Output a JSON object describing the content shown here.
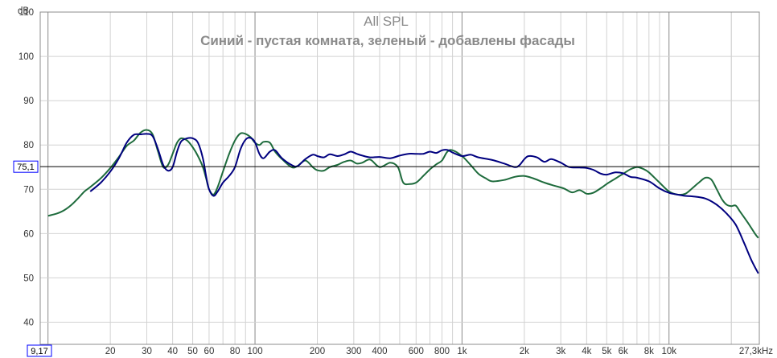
{
  "chart_data": {
    "type": "line",
    "title": "All SPL",
    "subtitle": "Синий - пустая комната, зеленый - добавлены фасады",
    "ylabel": "dB",
    "xlabel_unit": "Hz",
    "x_scale": "log",
    "xlim": [
      9.17,
      27300
    ],
    "ylim": [
      35,
      110
    ],
    "grid": true,
    "y_ticks": [
      40,
      50,
      60,
      70,
      80,
      90,
      100,
      110
    ],
    "y_tick_labels": [
      "40",
      "50",
      "60",
      "70",
      "80",
      "90",
      "100",
      "110"
    ],
    "x_tick_values": [
      20,
      30,
      40,
      50,
      60,
      80,
      100,
      200,
      300,
      400,
      600,
      800,
      1000,
      2000,
      3000,
      4000,
      5000,
      6000,
      8000,
      10000
    ],
    "x_tick_labels": [
      "20",
      "30",
      "40",
      "50",
      "60",
      "80",
      "100",
      "200",
      "300",
      "400",
      "600",
      "800",
      "1k",
      "2k",
      "3k",
      "4k",
      "5k",
      "6k",
      "8k",
      "10k"
    ],
    "x_min_label": "9,17",
    "x_max_label": "27,3kHz",
    "reference_line": {
      "value": 75.1,
      "label": "75,1"
    },
    "series": [
      {
        "name": "Синий - пустая комната",
        "color": "#00007f",
        "points": [
          [
            16,
            69.5
          ],
          [
            18,
            71.5
          ],
          [
            20,
            74
          ],
          [
            22,
            77
          ],
          [
            24,
            80.5
          ],
          [
            26,
            82.3
          ],
          [
            28,
            82.4
          ],
          [
            30,
            82.5
          ],
          [
            32,
            82
          ],
          [
            34,
            79
          ],
          [
            36,
            75.5
          ],
          [
            38,
            74.2
          ],
          [
            40,
            75
          ],
          [
            42,
            78.5
          ],
          [
            44,
            80.8
          ],
          [
            47,
            81.5
          ],
          [
            50,
            81.5
          ],
          [
            53,
            80.5
          ],
          [
            56,
            77
          ],
          [
            58,
            73
          ],
          [
            60,
            70
          ],
          [
            63,
            68.5
          ],
          [
            66,
            69.5
          ],
          [
            70,
            71.5
          ],
          [
            75,
            73
          ],
          [
            80,
            75
          ],
          [
            85,
            79
          ],
          [
            90,
            81.2
          ],
          [
            95,
            81.6
          ],
          [
            100,
            80.6
          ],
          [
            105,
            78
          ],
          [
            110,
            77
          ],
          [
            118,
            78.5
          ],
          [
            125,
            78.8
          ],
          [
            135,
            77
          ],
          [
            150,
            75.5
          ],
          [
            160,
            75.2
          ],
          [
            175,
            76.8
          ],
          [
            190,
            77.8
          ],
          [
            200,
            77.5
          ],
          [
            215,
            77.2
          ],
          [
            230,
            77.9
          ],
          [
            250,
            77.5
          ],
          [
            270,
            77.9
          ],
          [
            290,
            78.5
          ],
          [
            310,
            78
          ],
          [
            330,
            77.6
          ],
          [
            360,
            77.2
          ],
          [
            400,
            77.3
          ],
          [
            450,
            77
          ],
          [
            500,
            77.6
          ],
          [
            550,
            78
          ],
          [
            600,
            78
          ],
          [
            650,
            78
          ],
          [
            700,
            78.5
          ],
          [
            750,
            78.2
          ],
          [
            800,
            78.8
          ],
          [
            850,
            78.9
          ],
          [
            900,
            78.3
          ],
          [
            1000,
            77.5
          ],
          [
            1100,
            77.8
          ],
          [
            1200,
            77.2
          ],
          [
            1400,
            76.6
          ],
          [
            1600,
            75.8
          ],
          [
            1800,
            75
          ],
          [
            1900,
            75.5
          ],
          [
            2000,
            76.8
          ],
          [
            2100,
            77.5
          ],
          [
            2300,
            77.2
          ],
          [
            2500,
            76.2
          ],
          [
            2700,
            76.8
          ],
          [
            3000,
            76
          ],
          [
            3300,
            75
          ],
          [
            3700,
            74.9
          ],
          [
            4000,
            74.8
          ],
          [
            4300,
            74.4
          ],
          [
            4700,
            73.5
          ],
          [
            5000,
            73.3
          ],
          [
            5500,
            73.8
          ],
          [
            6000,
            73.6
          ],
          [
            6500,
            72.8
          ],
          [
            7000,
            72.6
          ],
          [
            8000,
            71.8
          ],
          [
            9000,
            70.2
          ],
          [
            10000,
            69.2
          ],
          [
            11000,
            68.8
          ],
          [
            12000,
            68.5
          ],
          [
            13000,
            68.4
          ],
          [
            15000,
            67.9
          ],
          [
            17000,
            66.5
          ],
          [
            19000,
            64.5
          ],
          [
            21000,
            62
          ],
          [
            23000,
            58
          ],
          [
            25000,
            54
          ],
          [
            27000,
            51
          ]
        ]
      },
      {
        "name": "зеленый - добавлены фасады",
        "color": "#1e6b3c",
        "points": [
          [
            10,
            64
          ],
          [
            11,
            64.5
          ],
          [
            12,
            65.3
          ],
          [
            13,
            66.5
          ],
          [
            14,
            68
          ],
          [
            15,
            69.5
          ],
          [
            16,
            70.5
          ],
          [
            18,
            72.5
          ],
          [
            20,
            74.8
          ],
          [
            22,
            77.3
          ],
          [
            24,
            79.8
          ],
          [
            26,
            81
          ],
          [
            28,
            82.8
          ],
          [
            30,
            83.4
          ],
          [
            32,
            82.4
          ],
          [
            34,
            78.5
          ],
          [
            36,
            75
          ],
          [
            38,
            75.5
          ],
          [
            40,
            78
          ],
          [
            42,
            80.5
          ],
          [
            44,
            81.5
          ],
          [
            47,
            81
          ],
          [
            50,
            79.5
          ],
          [
            53,
            77.5
          ],
          [
            56,
            75
          ],
          [
            58,
            72.5
          ],
          [
            60,
            70
          ],
          [
            63,
            68.8
          ],
          [
            66,
            70.5
          ],
          [
            70,
            74
          ],
          [
            75,
            78
          ],
          [
            80,
            81
          ],
          [
            85,
            82.6
          ],
          [
            90,
            82.5
          ],
          [
            95,
            81.8
          ],
          [
            100,
            80.5
          ],
          [
            105,
            80
          ],
          [
            110,
            80.7
          ],
          [
            118,
            80.5
          ],
          [
            125,
            78.5
          ],
          [
            135,
            76.8
          ],
          [
            150,
            75
          ],
          [
            160,
            75.2
          ],
          [
            175,
            76.5
          ],
          [
            190,
            75
          ],
          [
            200,
            74.3
          ],
          [
            215,
            74.2
          ],
          [
            230,
            75
          ],
          [
            250,
            75.5
          ],
          [
            270,
            76.2
          ],
          [
            290,
            76.5
          ],
          [
            310,
            75.8
          ],
          [
            330,
            76
          ],
          [
            360,
            76.7
          ],
          [
            400,
            75
          ],
          [
            450,
            76
          ],
          [
            490,
            75
          ],
          [
            520,
            71.5
          ],
          [
            560,
            71.2
          ],
          [
            600,
            71.5
          ],
          [
            650,
            73
          ],
          [
            700,
            74.5
          ],
          [
            750,
            75.6
          ],
          [
            800,
            76.5
          ],
          [
            850,
            78.5
          ],
          [
            900,
            78.8
          ],
          [
            1000,
            77.5
          ],
          [
            1100,
            75.5
          ],
          [
            1200,
            73.5
          ],
          [
            1300,
            72.5
          ],
          [
            1400,
            71.8
          ],
          [
            1600,
            72.1
          ],
          [
            1800,
            72.8
          ],
          [
            2000,
            73
          ],
          [
            2200,
            72.5
          ],
          [
            2500,
            71.5
          ],
          [
            2800,
            70.8
          ],
          [
            3100,
            70.2
          ],
          [
            3400,
            69.3
          ],
          [
            3700,
            69.8
          ],
          [
            4000,
            69
          ],
          [
            4300,
            69.2
          ],
          [
            4700,
            70.3
          ],
          [
            5000,
            71.2
          ],
          [
            5500,
            72.4
          ],
          [
            6000,
            73.5
          ],
          [
            6500,
            74.5
          ],
          [
            7000,
            75
          ],
          [
            7500,
            74.6
          ],
          [
            8000,
            73.8
          ],
          [
            9000,
            71.5
          ],
          [
            10000,
            69.5
          ],
          [
            11000,
            68.8
          ],
          [
            12000,
            69
          ],
          [
            13000,
            70.3
          ],
          [
            14000,
            71.6
          ],
          [
            15000,
            72.6
          ],
          [
            16000,
            72.2
          ],
          [
            17000,
            70
          ],
          [
            18000,
            67.8
          ],
          [
            19000,
            66.5
          ],
          [
            20000,
            66.2
          ],
          [
            21000,
            66.3
          ],
          [
            22000,
            65
          ],
          [
            24000,
            62.5
          ],
          [
            26000,
            60
          ],
          [
            27000,
            59
          ]
        ]
      }
    ]
  }
}
